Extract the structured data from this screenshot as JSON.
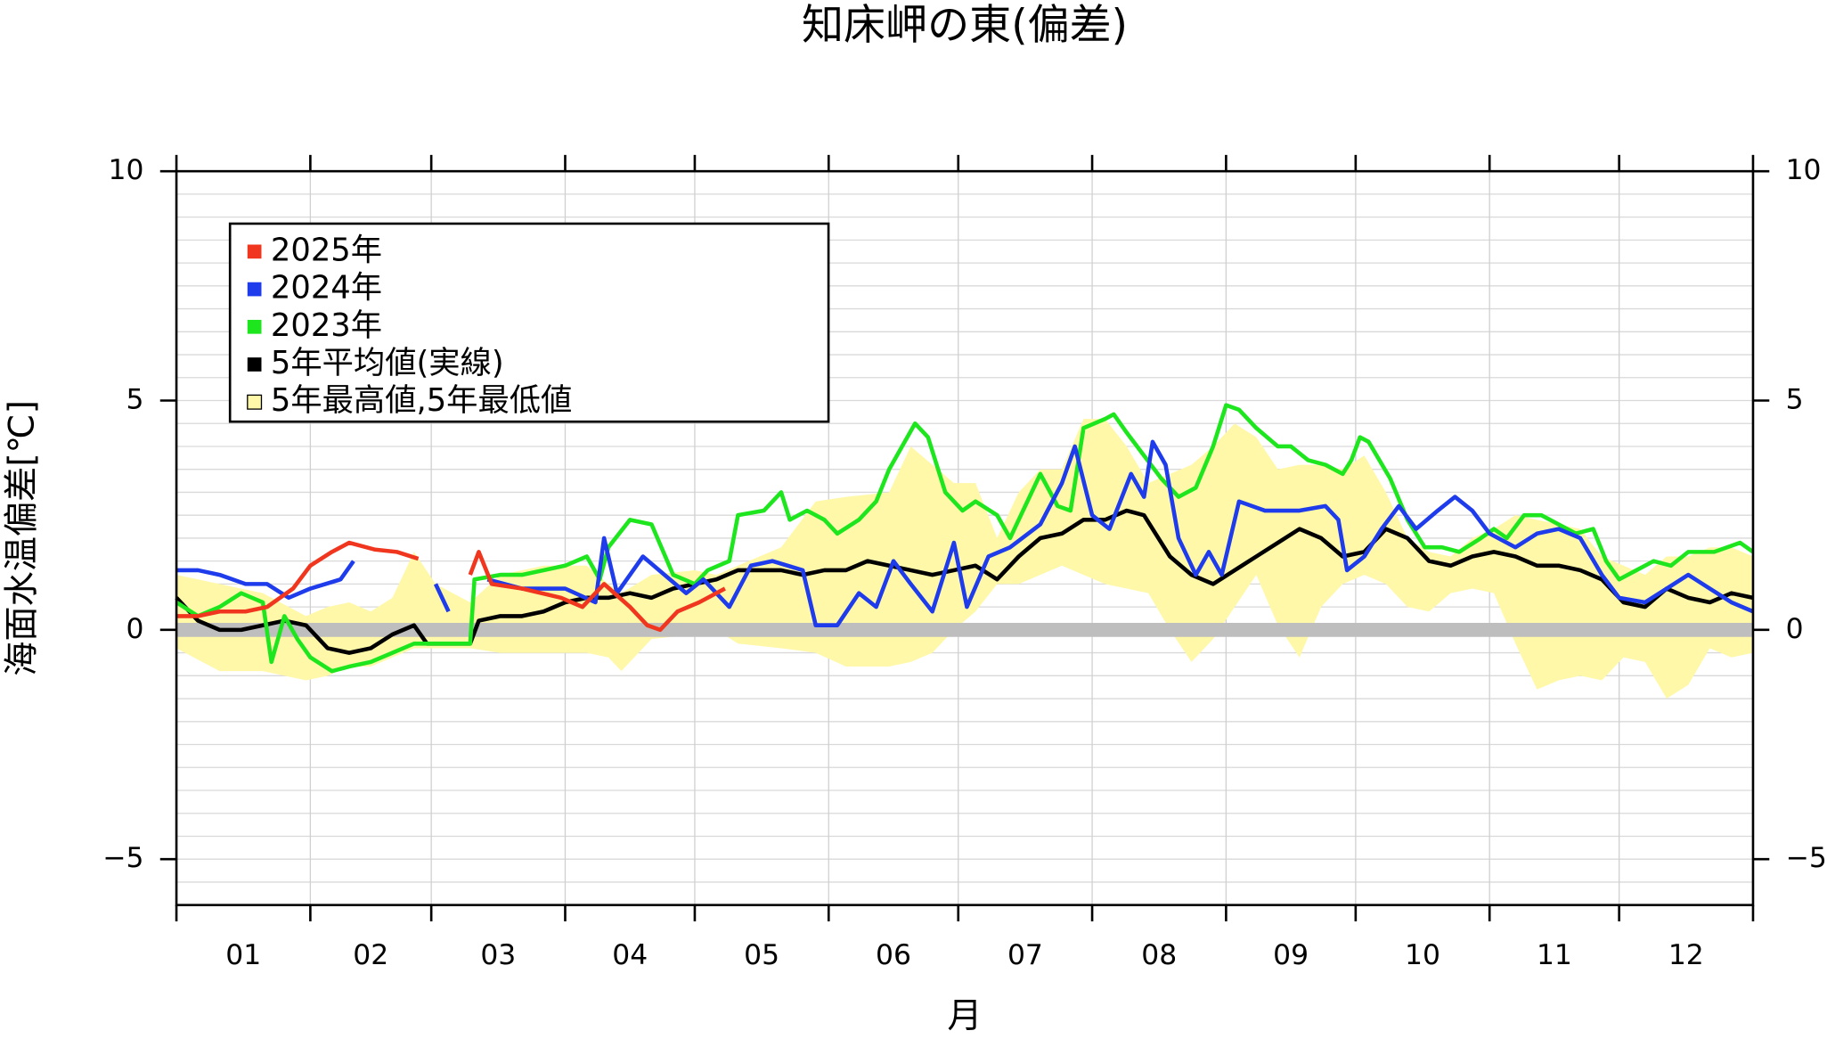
{
  "chart_data": {
    "type": "line",
    "title": "知床岬の東(偏差)",
    "xlabel": "月",
    "ylabel": "海面水温偏差[℃]",
    "categories": [
      "01",
      "02",
      "03",
      "04",
      "05",
      "06",
      "07",
      "08",
      "09",
      "10",
      "11",
      "12"
    ],
    "xlim": [
      0,
      365
    ],
    "month_ticks": [
      0,
      31,
      59,
      90,
      120,
      151,
      181,
      212,
      243,
      273,
      304,
      334,
      365
    ],
    "ylim": [
      -6,
      10
    ],
    "yticks": [
      {
        "value": -5,
        "label": "−5"
      },
      0,
      5,
      10
    ],
    "ygrid": [
      -6,
      -5.5,
      -5,
      -4.5,
      -4,
      -3.5,
      -3,
      -2.5,
      -2,
      -1.5,
      -1,
      -0.5,
      0,
      0.5,
      1,
      1.5,
      2,
      2.5,
      3,
      3.5,
      4,
      4.5,
      5,
      5.5,
      6,
      6.5,
      7,
      7.5,
      8,
      8.5,
      9,
      9.5,
      10
    ],
    "grid": true,
    "reference_line": 0,
    "reference_color": "#bebebe",
    "series": [
      {
        "name": "2025年",
        "color": "#f0361e",
        "x": [
          0,
          5,
          10,
          16,
          21,
          27,
          31,
          36,
          40,
          46,
          51,
          56,
          62,
          68,
          70,
          73,
          80,
          89,
          94,
          99,
          105,
          109,
          112,
          116,
          121,
          127
        ],
        "values": [
          0.3,
          0.3,
          0.4,
          0.4,
          0.5,
          0.9,
          1.4,
          1.7,
          1.9,
          1.75,
          1.7,
          1.55,
          null,
          1.2,
          1.7,
          1.0,
          0.9,
          0.7,
          0.5,
          1.0,
          0.5,
          0.1,
          0.0,
          0.4,
          0.6,
          0.9
        ]
      },
      {
        "name": "2024年",
        "color": "#1e3ceb",
        "x": [
          0,
          5,
          10,
          16,
          21,
          26,
          31,
          38,
          41,
          50,
          60,
          62,
          63,
          70,
          72,
          80,
          90,
          97,
          99,
          102,
          108,
          113,
          118,
          122,
          128,
          133,
          138,
          145,
          148,
          153,
          158,
          162,
          166,
          170,
          175,
          180,
          183,
          188,
          193,
          200,
          205,
          208,
          212,
          216,
          221,
          224,
          226,
          229,
          232,
          236,
          239,
          242,
          246,
          252,
          260,
          266,
          269,
          271,
          275,
          279,
          283,
          287,
          292,
          296,
          300,
          304,
          310,
          315,
          320,
          325,
          330,
          334,
          340,
          345,
          350,
          355,
          360,
          365
        ],
        "values": [
          1.3,
          1.3,
          1.2,
          1.0,
          1.0,
          0.7,
          0.9,
          1.1,
          1.5,
          null,
          1.0,
          0.6,
          0.4,
          null,
          1.1,
          0.9,
          0.9,
          0.6,
          2.0,
          0.8,
          1.6,
          1.2,
          0.8,
          1.1,
          0.5,
          1.4,
          1.5,
          1.3,
          0.1,
          0.1,
          0.8,
          0.5,
          1.5,
          1.0,
          0.4,
          1.9,
          0.5,
          1.6,
          1.8,
          2.3,
          3.2,
          4.0,
          2.5,
          2.2,
          3.4,
          2.9,
          4.1,
          3.6,
          2.0,
          1.2,
          1.7,
          1.2,
          2.8,
          2.6,
          2.6,
          2.7,
          2.4,
          1.3,
          1.6,
          2.2,
          2.7,
          2.2,
          2.6,
          2.9,
          2.6,
          2.1,
          1.8,
          2.1,
          2.2,
          2.0,
          1.2,
          0.7,
          0.6,
          0.9,
          1.2,
          0.9,
          0.6,
          0.4
        ]
      },
      {
        "name": "2023年",
        "color": "#1ee61e",
        "x": [
          0,
          5,
          10,
          15,
          20,
          22,
          25,
          28,
          31,
          36,
          40,
          45,
          50,
          55,
          58,
          63,
          68,
          69,
          75,
          80,
          90,
          95,
          98,
          100,
          105,
          110,
          115,
          120,
          123,
          128,
          130,
          136,
          140,
          142,
          146,
          150,
          153,
          158,
          162,
          165,
          171,
          174,
          178,
          182,
          185,
          190,
          193,
          197,
          200,
          204,
          207,
          210,
          215,
          217,
          220,
          224,
          228,
          232,
          236,
          240,
          243,
          246,
          250,
          255,
          258,
          262,
          266,
          270,
          272,
          274,
          276,
          281,
          285,
          289,
          293,
          297,
          302,
          305,
          308,
          312,
          316,
          320,
          324,
          328,
          331,
          334,
          338,
          342,
          346,
          350,
          356,
          362,
          365
        ],
        "values": [
          0.6,
          0.3,
          0.5,
          0.8,
          0.6,
          -0.7,
          0.3,
          -0.2,
          -0.6,
          -0.9,
          -0.8,
          -0.7,
          -0.5,
          -0.3,
          -0.3,
          -0.3,
          -0.3,
          1.1,
          1.2,
          1.2,
          1.4,
          1.6,
          1.1,
          1.8,
          2.4,
          2.3,
          1.2,
          1.0,
          1.3,
          1.5,
          2.5,
          2.6,
          3.0,
          2.4,
          2.6,
          2.4,
          2.1,
          2.4,
          2.8,
          3.5,
          4.5,
          4.2,
          3.0,
          2.6,
          2.8,
          2.5,
          2.0,
          2.8,
          3.4,
          2.7,
          2.6,
          4.4,
          4.6,
          4.7,
          4.3,
          3.8,
          3.3,
          2.9,
          3.1,
          4.0,
          4.9,
          4.8,
          4.4,
          4.0,
          4.0,
          3.7,
          3.6,
          3.4,
          3.7,
          4.2,
          4.1,
          3.3,
          2.4,
          1.8,
          1.8,
          1.7,
          2.0,
          2.2,
          2.0,
          2.5,
          2.5,
          2.3,
          2.1,
          2.2,
          1.5,
          1.1,
          1.3,
          1.5,
          1.4,
          1.7,
          1.7,
          1.9,
          1.7
        ]
      },
      {
        "name": "5年平均値(実線)",
        "color": "#000000",
        "x": [
          0,
          5,
          10,
          15,
          20,
          25,
          30,
          35,
          40,
          45,
          50,
          55,
          58,
          62,
          68,
          70,
          75,
          80,
          85,
          90,
          95,
          100,
          105,
          110,
          115,
          120,
          125,
          130,
          135,
          140,
          145,
          150,
          155,
          160,
          165,
          170,
          175,
          180,
          185,
          190,
          195,
          200,
          205,
          210,
          215,
          220,
          224,
          230,
          235,
          240,
          245,
          250,
          255,
          260,
          265,
          270,
          275,
          280,
          285,
          290,
          295,
          300,
          305,
          310,
          315,
          320,
          325,
          330,
          335,
          340,
          345,
          350,
          355,
          360,
          365
        ],
        "values": [
          0.7,
          0.2,
          0.0,
          0.0,
          0.1,
          0.2,
          0.1,
          -0.4,
          -0.5,
          -0.4,
          -0.1,
          0.1,
          -0.3,
          -0.3,
          -0.3,
          0.2,
          0.3,
          0.3,
          0.4,
          0.6,
          0.7,
          0.7,
          0.8,
          0.7,
          0.9,
          1.0,
          1.1,
          1.3,
          1.3,
          1.3,
          1.2,
          1.3,
          1.3,
          1.5,
          1.4,
          1.3,
          1.2,
          1.3,
          1.4,
          1.1,
          1.6,
          2.0,
          2.1,
          2.4,
          2.4,
          2.6,
          2.5,
          1.6,
          1.2,
          1.0,
          1.3,
          1.6,
          1.9,
          2.2,
          2.0,
          1.6,
          1.7,
          2.2,
          2.0,
          1.5,
          1.4,
          1.6,
          1.7,
          1.6,
          1.4,
          1.4,
          1.3,
          1.1,
          0.6,
          0.5,
          0.9,
          0.7,
          0.6,
          0.8,
          0.7
        ]
      },
      {
        "name": "5年最高値,5年最低値",
        "color": "#fff8a8",
        "type": "band",
        "x": [
          0,
          10,
          20,
          30,
          35,
          40,
          45,
          50,
          55,
          60,
          68,
          75,
          85,
          95,
          100,
          103,
          110,
          120,
          125,
          130,
          140,
          148,
          155,
          165,
          170,
          175,
          180,
          185,
          190,
          195,
          200,
          205,
          210,
          215,
          220,
          225,
          230,
          235,
          240,
          245,
          250,
          255,
          260,
          265,
          270,
          275,
          280,
          285,
          290,
          295,
          300,
          305,
          310,
          315,
          320,
          325,
          330,
          335,
          340,
          345,
          350,
          355,
          360,
          365
        ],
        "max": [
          1.2,
          1.0,
          0.8,
          0.3,
          0.5,
          0.6,
          0.4,
          0.7,
          1.7,
          1.0,
          0.6,
          1.2,
          1.4,
          1.4,
          1.0,
          0.8,
          1.2,
          1.3,
          1.2,
          1.4,
          1.8,
          2.8,
          2.9,
          3.0,
          4.0,
          3.6,
          3.2,
          3.2,
          2.0,
          3.0,
          3.5,
          3.5,
          4.6,
          4.6,
          4.0,
          3.2,
          3.4,
          3.6,
          4.0,
          4.5,
          4.2,
          3.5,
          3.6,
          3.6,
          3.5,
          3.8,
          3.0,
          2.0,
          1.7,
          1.6,
          2.0,
          2.2,
          2.5,
          2.4,
          2.3,
          2.2,
          1.6,
          1.4,
          1.2,
          1.6,
          1.6,
          1.8,
          1.8,
          1.6
        ],
        "min": [
          -0.4,
          -0.9,
          -0.9,
          -1.1,
          -1.0,
          -0.8,
          -0.8,
          -0.6,
          -0.4,
          -0.4,
          -0.4,
          -0.5,
          -0.5,
          -0.5,
          -0.6,
          -0.9,
          -0.2,
          -0.1,
          0.0,
          -0.3,
          -0.4,
          -0.5,
          -0.8,
          -0.8,
          -0.7,
          -0.5,
          0.0,
          0.4,
          1.0,
          1.0,
          1.2,
          1.4,
          1.2,
          1.0,
          0.9,
          0.8,
          0.0,
          -0.7,
          -0.2,
          0.5,
          1.2,
          0.1,
          -0.6,
          0.5,
          1.0,
          1.2,
          1.0,
          0.5,
          0.4,
          0.8,
          0.9,
          0.8,
          -0.3,
          -1.3,
          -1.1,
          -1.0,
          -1.1,
          -0.6,
          -0.7,
          -1.5,
          -1.2,
          -0.4,
          -0.6,
          -0.5
        ]
      }
    ]
  }
}
